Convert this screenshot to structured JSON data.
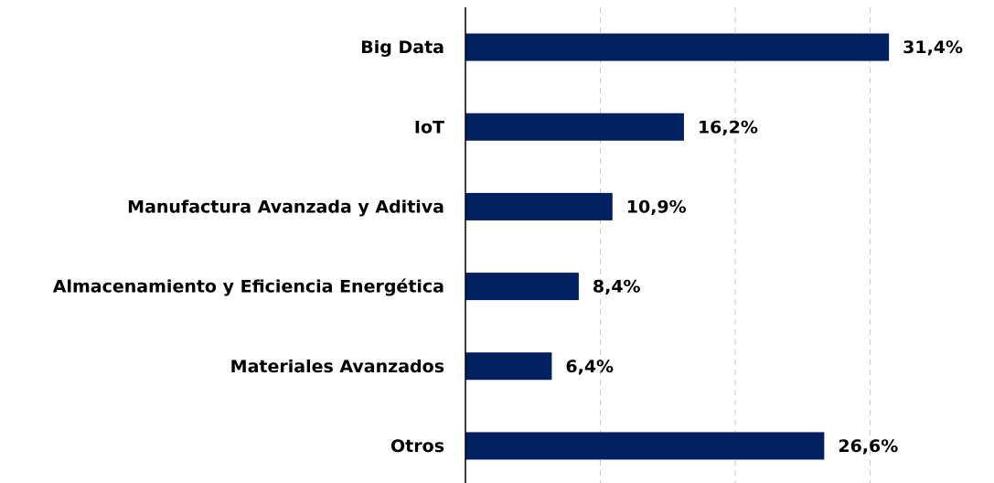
{
  "chart_data": {
    "type": "hbar",
    "categories": [
      "Big Data",
      "IoT",
      "Manufactura Avanzada y Aditiva",
      "Almacenamiento y Eficiencia Energética",
      "Materiales Avanzados",
      "Otros"
    ],
    "values": [
      31.4,
      16.2,
      10.9,
      8.4,
      6.4,
      26.6
    ],
    "value_labels": [
      "31,4%",
      "16,2%",
      "10,9%",
      "8,4%",
      "6,4%",
      "26,6%"
    ],
    "color": "#012060",
    "xlim": [
      0,
      35
    ],
    "xticks": [
      10,
      20,
      30
    ],
    "grid": true
  }
}
